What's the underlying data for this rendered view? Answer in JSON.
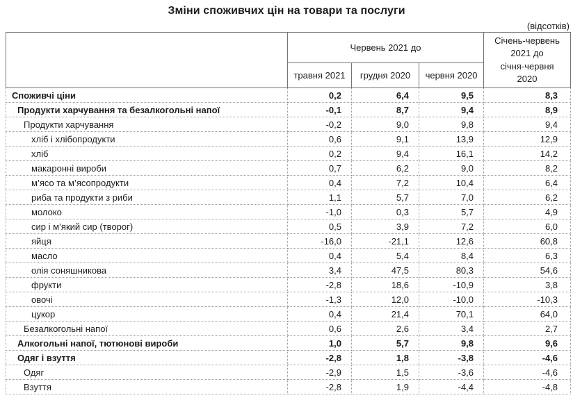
{
  "title": "Зміни споживчих цін на товари та послуги",
  "unit_note": "(відсотків)",
  "colors": {
    "text": "#1c1c1c",
    "border_solid": "#737373",
    "border_dotted": "#9c9c9c",
    "background": "#ffffff"
  },
  "table": {
    "header": {
      "corner_label": "",
      "group_label": "Червень 2021 до",
      "sub_columns": [
        "травня 2021",
        "грудня 2020",
        "червня 2020"
      ],
      "period_column": "Січень-червень\n2021 до\nсічня-червня\n2020"
    },
    "rows": [
      {
        "label": "Споживчі ціни",
        "indent": 0,
        "bold": true,
        "values": [
          "0,2",
          "6,4",
          "9,5",
          "8,3"
        ]
      },
      {
        "label": "Продукти харчування та безалкогольні напої",
        "indent": 1,
        "bold": true,
        "values": [
          "-0,1",
          "8,7",
          "9,4",
          "8,9"
        ]
      },
      {
        "label": "Продукти харчування",
        "indent": 2,
        "bold": false,
        "values": [
          "-0,2",
          "9,0",
          "9,8",
          "9,4"
        ]
      },
      {
        "label": "хліб і хлібопродукти",
        "indent": 3,
        "bold": false,
        "values": [
          "0,6",
          "9,1",
          "13,9",
          "12,9"
        ]
      },
      {
        "label": "хліб",
        "indent": 3,
        "bold": false,
        "values": [
          "0,2",
          "9,4",
          "16,1",
          "14,2"
        ]
      },
      {
        "label": "макаронні вироби",
        "indent": 3,
        "bold": false,
        "values": [
          "0,7",
          "6,2",
          "9,0",
          "8,2"
        ]
      },
      {
        "label": "м’ясо та м’ясопродукти",
        "indent": 3,
        "bold": false,
        "values": [
          "0,4",
          "7,2",
          "10,4",
          "6,4"
        ]
      },
      {
        "label": "риба та продукти з риби",
        "indent": 3,
        "bold": false,
        "values": [
          "1,1",
          "5,7",
          "7,0",
          "6,2"
        ]
      },
      {
        "label": "молоко",
        "indent": 3,
        "bold": false,
        "values": [
          "-1,0",
          "0,3",
          "5,7",
          "4,9"
        ]
      },
      {
        "label": "сир і м’який сир (творог)",
        "indent": 3,
        "bold": false,
        "values": [
          "0,5",
          "3,9",
          "7,2",
          "6,0"
        ]
      },
      {
        "label": "яйця",
        "indent": 3,
        "bold": false,
        "values": [
          "-16,0",
          "-21,1",
          "12,6",
          "60,8"
        ]
      },
      {
        "label": "масло",
        "indent": 3,
        "bold": false,
        "values": [
          "0,4",
          "5,4",
          "8,4",
          "6,3"
        ]
      },
      {
        "label": "олія соняшникова",
        "indent": 3,
        "bold": false,
        "values": [
          "3,4",
          "47,5",
          "80,3",
          "54,6"
        ]
      },
      {
        "label": "фрукти",
        "indent": 3,
        "bold": false,
        "values": [
          "-2,8",
          "18,6",
          "-10,9",
          "3,8"
        ]
      },
      {
        "label": "овочі",
        "indent": 3,
        "bold": false,
        "values": [
          "-1,3",
          "12,0",
          "-10,0",
          "-10,3"
        ]
      },
      {
        "label": "цукор",
        "indent": 3,
        "bold": false,
        "values": [
          "0,4",
          "21,4",
          "70,1",
          "64,0"
        ]
      },
      {
        "label": "Безалкогольні напої",
        "indent": 2,
        "bold": false,
        "values": [
          "0,6",
          "2,6",
          "3,4",
          "2,7"
        ]
      },
      {
        "label": "Алкогольні напої, тютюнові вироби",
        "indent": 1,
        "bold": true,
        "values": [
          "1,0",
          "5,7",
          "9,8",
          "9,6"
        ]
      },
      {
        "label": "Одяг і взуття",
        "indent": 1,
        "bold": true,
        "values": [
          "-2,8",
          "1,8",
          "-3,8",
          "-4,6"
        ]
      },
      {
        "label": "Одяг",
        "indent": 2,
        "bold": false,
        "values": [
          "-2,9",
          "1,5",
          "-3,6",
          "-4,6"
        ]
      },
      {
        "label": "Взуття",
        "indent": 2,
        "bold": false,
        "values": [
          "-2,8",
          "1,9",
          "-4,4",
          "-4,8"
        ]
      }
    ]
  }
}
